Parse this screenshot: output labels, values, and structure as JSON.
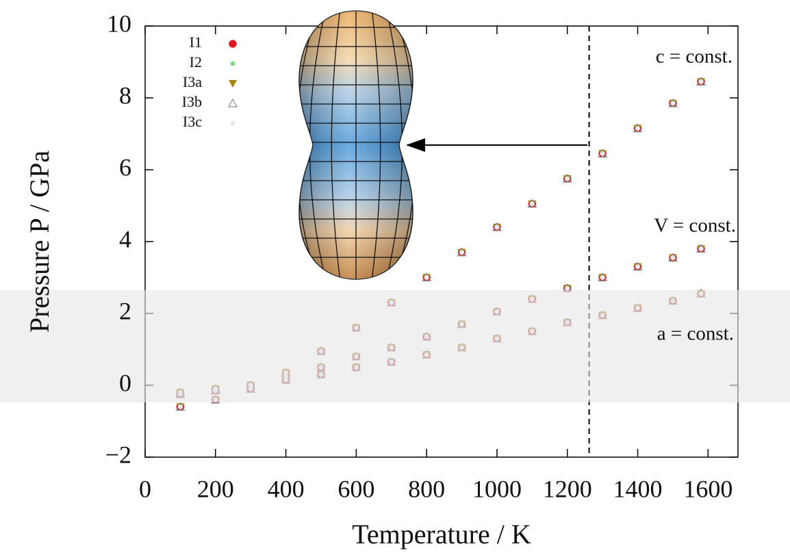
{
  "chart_data": {
    "type": "scatter",
    "xlabel": "Temperature / K",
    "ylabel": "Pressure P / GPa",
    "xlim": [
      0,
      1685
    ],
    "ylim": [
      -2,
      10
    ],
    "xticks": [
      0,
      200,
      400,
      600,
      800,
      1000,
      1200,
      1400,
      1600
    ],
    "yticks": [
      {
        "value": -2,
        "label": "−2"
      },
      0,
      2,
      4,
      6,
      8,
      10
    ],
    "vline": 1262,
    "x": [
      100,
      200,
      300,
      400,
      500,
      600,
      700,
      800,
      900,
      1000,
      1100,
      1200,
      1300,
      1400,
      1500,
      1580
    ],
    "curves": [
      {
        "label": "c = const.",
        "values": [
          -0.6,
          -0.4,
          -0.1,
          0.35,
          0.95,
          1.6,
          2.3,
          3.0,
          3.7,
          4.4,
          5.05,
          5.75,
          6.45,
          7.15,
          7.85,
          8.45
        ]
      },
      {
        "label": "V = const.",
        "values": [
          -0.25,
          -0.15,
          0.0,
          0.25,
          0.5,
          0.8,
          1.05,
          1.35,
          1.7,
          2.05,
          2.4,
          2.7,
          3.0,
          3.3,
          3.55,
          3.8
        ]
      },
      {
        "label": "a = const.",
        "values": [
          -0.2,
          -0.1,
          0.0,
          0.15,
          0.3,
          0.5,
          0.65,
          0.85,
          1.05,
          1.3,
          1.5,
          1.75,
          1.95,
          2.15,
          2.35,
          2.55
        ]
      }
    ],
    "series": [
      {
        "name": "I1",
        "color": "#e8141c",
        "marker": "circle"
      },
      {
        "name": "I2",
        "color": "#7fd88a",
        "marker": "dot"
      },
      {
        "name": "I3a",
        "color": "#a8820a",
        "marker": "triangle-down"
      },
      {
        "name": "I3b",
        "color": "#8a8a9a",
        "marker": "triangle-open"
      },
      {
        "name": "I3c",
        "color": "#e4e8f0",
        "marker": "dot"
      }
    ]
  }
}
